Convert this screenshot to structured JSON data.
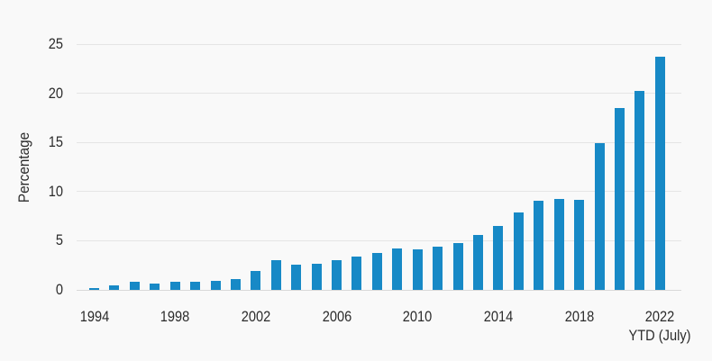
{
  "chart_data": {
    "type": "bar",
    "title": "",
    "ylabel": "Percentage",
    "x_axis_note": "YTD (July)",
    "categories": [
      "1994",
      "1995",
      "1996",
      "1997",
      "1998",
      "1999",
      "2000",
      "2001",
      "2002",
      "2003",
      "2004",
      "2005",
      "2006",
      "2007",
      "2008",
      "2009",
      "2010",
      "2011",
      "2012",
      "2013",
      "2014",
      "2015",
      "2016",
      "2017",
      "2018",
      "2019",
      "2020",
      "2021",
      "2022"
    ],
    "values": [
      0.2,
      0.5,
      0.8,
      0.6,
      0.8,
      0.8,
      0.9,
      1.1,
      1.9,
      3.0,
      2.6,
      2.7,
      3.0,
      3.4,
      3.8,
      4.2,
      4.1,
      4.4,
      4.8,
      5.6,
      6.5,
      7.9,
      9.1,
      9.3,
      9.2,
      14.9,
      18.5,
      20.3,
      23.7
    ],
    "ylim": [
      0,
      25
    ],
    "yticks": [
      0,
      5,
      10,
      15,
      20,
      25
    ],
    "visible_x_ticks": [
      "1994",
      "1998",
      "2002",
      "2006",
      "2010",
      "2014",
      "2018",
      "2022"
    ],
    "grid": true,
    "legend": "none",
    "bar_color": "#1789c6",
    "background_color": "#f9f9f9",
    "gridline_color": "#e5e5e5",
    "zero_line_color": "#d9d9d9",
    "text_color": "#2b2b2b"
  }
}
